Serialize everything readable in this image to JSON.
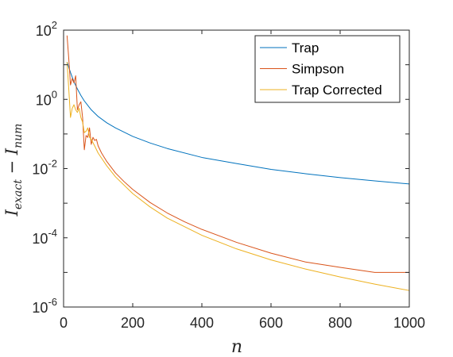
{
  "chart_data": {
    "type": "line",
    "title": "",
    "xlabel": "n",
    "ylabel": {
      "base": "I",
      "sub1": "exact",
      "minus": " − ",
      "sub2": "num"
    },
    "xlim": [
      0,
      1000
    ],
    "ylim": [
      1e-06,
      100
    ],
    "y_scale": "log",
    "grid": false,
    "legend_position": "top-right",
    "x_ticks": [
      "0",
      "200",
      "400",
      "600",
      "800",
      "1000"
    ],
    "y_ticks": [
      {
        "base": "10",
        "exp": "2",
        "value": 100
      },
      {
        "base": "10",
        "exp": "0",
        "value": 1
      },
      {
        "base": "10",
        "exp": "-2",
        "value": 0.01
      },
      {
        "base": "10",
        "exp": "-4",
        "value": 0.0001
      },
      {
        "base": "10",
        "exp": "-6",
        "value": 1e-06
      }
    ],
    "series": [
      {
        "name": "Trap",
        "color": "#0072BD",
        "x": [
          10,
          20,
          30,
          40,
          50,
          60,
          80,
          100,
          125,
          150,
          200,
          250,
          300,
          400,
          500,
          600,
          700,
          800,
          900,
          1000
        ],
        "y": [
          12,
          6,
          3.2,
          2.0,
          1.3,
          0.9,
          0.5,
          0.32,
          0.21,
          0.15,
          0.085,
          0.055,
          0.038,
          0.021,
          0.014,
          0.0095,
          0.0071,
          0.0055,
          0.0044,
          0.0036
        ]
      },
      {
        "name": "Simpson",
        "color": "#D95319",
        "x": [
          10,
          15,
          20,
          25,
          30,
          35,
          40,
          45,
          50,
          55,
          60,
          65,
          70,
          75,
          80,
          85,
          90,
          95,
          100,
          110,
          125,
          150,
          175,
          200,
          250,
          300,
          350,
          400,
          500,
          600,
          700,
          800,
          900,
          1000
        ],
        "y": [
          70,
          15,
          2.6,
          4.0,
          3.0,
          4.8,
          0.5,
          0.7,
          0.85,
          0.3,
          0.035,
          0.09,
          0.08,
          0.15,
          0.05,
          0.08,
          0.065,
          0.07,
          0.045,
          0.028,
          0.016,
          0.0075,
          0.0042,
          0.0025,
          0.00105,
          0.00052,
          0.00029,
          0.000175,
          7.4e-05,
          3.6e-05,
          2e-05,
          1.4e-05,
          1e-05,
          1e-05
        ]
      },
      {
        "name": "Trap Corrected",
        "color": "#EDB120",
        "x": [
          10,
          15,
          20,
          25,
          30,
          35,
          40,
          45,
          50,
          55,
          60,
          65,
          70,
          75,
          80,
          90,
          100,
          125,
          150,
          200,
          250,
          300,
          400,
          500,
          600,
          700,
          800,
          900,
          1000
        ],
        "y": [
          12,
          2.0,
          0.3,
          0.55,
          0.7,
          0.5,
          0.42,
          0.55,
          0.3,
          0.22,
          0.11,
          0.12,
          0.15,
          0.08,
          0.07,
          0.045,
          0.028,
          0.012,
          0.0058,
          0.0019,
          0.00078,
          0.00037,
          0.000118,
          4.8e-05,
          2.3e-05,
          1.25e-05,
          7.4e-06,
          4.6e-06,
          3e-06
        ]
      }
    ]
  }
}
